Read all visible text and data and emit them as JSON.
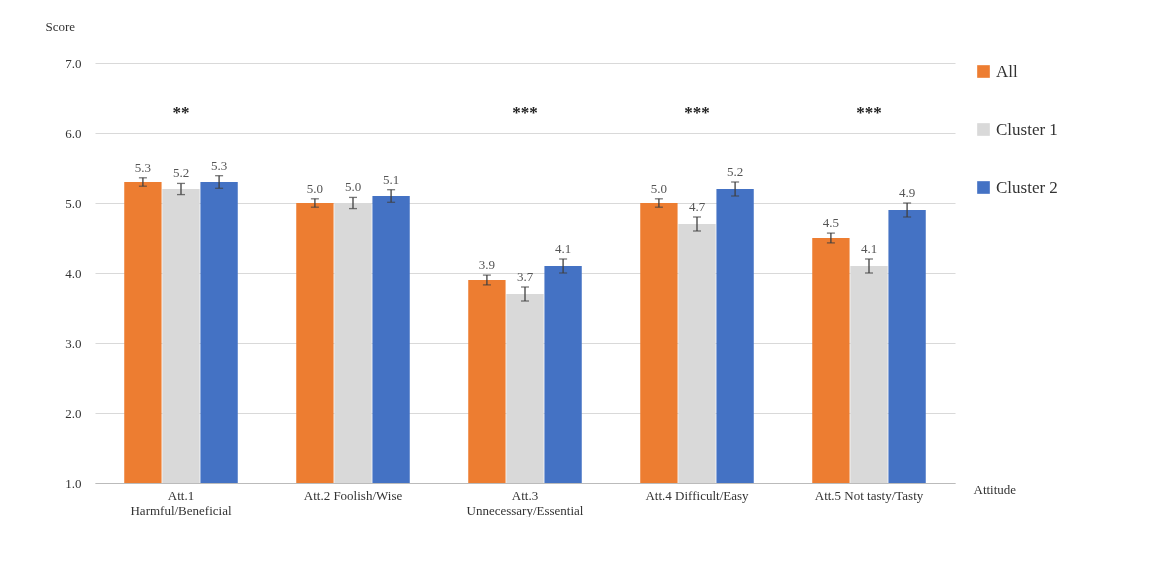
{
  "chart_data": {
    "type": "bar",
    "ylabel": "Score",
    "xlabel": "Attitude",
    "categories": [
      "Att.1\nHarmful/Beneficial",
      "Att.2 Foolish/Wise",
      "Att.3\nUnnecessary/Essential",
      "Att.4 Difficult/Easy",
      "Att.5 Not tasty/Tasty"
    ],
    "series": [
      {
        "name": "All",
        "color": "#ed7d31",
        "values": [
          5.3,
          5.0,
          3.9,
          5.0,
          4.5
        ],
        "errors": [
          0.06,
          0.06,
          0.07,
          0.06,
          0.07
        ],
        "value_labels": [
          "5.3",
          "5.0",
          "3.9",
          "5.0",
          "4.5"
        ]
      },
      {
        "name": "Cluster 1",
        "color": "#d9d9d9",
        "values": [
          5.2,
          5.0,
          3.7,
          4.7,
          4.1
        ],
        "errors": [
          0.08,
          0.08,
          0.1,
          0.1,
          0.1
        ],
        "value_labels": [
          "5.2",
          "5.0",
          "3.7",
          "4.7",
          "4.1"
        ]
      },
      {
        "name": "Cluster 2",
        "color": "#4472c4",
        "values": [
          5.3,
          5.1,
          4.1,
          5.2,
          4.9
        ],
        "errors": [
          0.09,
          0.09,
          0.1,
          0.1,
          0.1
        ],
        "value_labels": [
          "5.3",
          "5.1",
          "4.1",
          "5.2",
          "4.9"
        ]
      }
    ],
    "ylim": [
      1,
      7
    ],
    "yticks": [
      {
        "value": 1,
        "label": "1.0"
      },
      {
        "value": 2,
        "label": "2.0"
      },
      {
        "value": 3,
        "label": "3.0"
      },
      {
        "value": 4,
        "label": "4.0"
      },
      {
        "value": 5,
        "label": "5.0"
      },
      {
        "value": 6,
        "label": "6.0"
      },
      {
        "value": 7,
        "label": "7.0"
      }
    ],
    "grid": "y",
    "legend": "top right",
    "annotations": [
      "**",
      "***",
      "***",
      "***"
    ]
  }
}
